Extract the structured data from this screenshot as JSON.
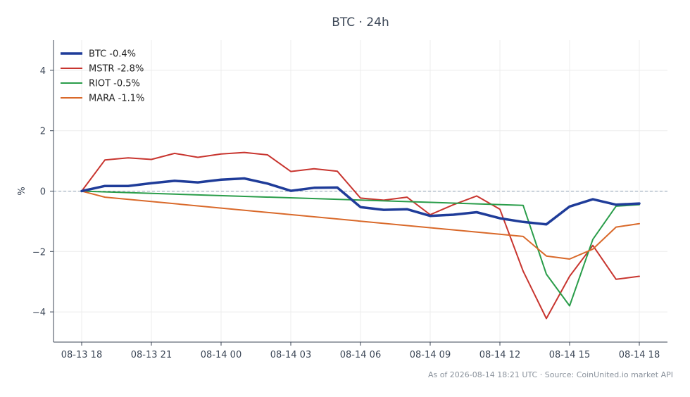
{
  "footer": {
    "text": "As of 2026-08-14 18:21 UTC · Source: CoinUnited.io market API"
  },
  "chart_data": {
    "type": "line",
    "title": "BTC · 24h",
    "xlabel": "",
    "ylabel": "%",
    "ylim": [
      -5,
      5
    ],
    "yticks": [
      -4,
      -2,
      0,
      2,
      4
    ],
    "ytick_labels": [
      "−4",
      "−2",
      "0",
      "2",
      "4"
    ],
    "xlim": [
      0,
      24
    ],
    "xticks": [
      0,
      3,
      6,
      9,
      12,
      15,
      18,
      21,
      24
    ],
    "xtick_labels": [
      "08-13 18",
      "08-13 21",
      "08-14 00",
      "08-14 03",
      "08-14 06",
      "08-14 09",
      "08-14 12",
      "08-14 15",
      "08-14 18"
    ],
    "grid": true,
    "zero_line": true,
    "legend_position": "top-left",
    "series": [
      {
        "name": "BTC -0.4%",
        "color": "#1f3c99",
        "width": 3.5,
        "points": [
          [
            0,
            0
          ],
          [
            1,
            0.17
          ],
          [
            2,
            0.17
          ],
          [
            3,
            0.26
          ],
          [
            4,
            0.34
          ],
          [
            5,
            0.29
          ],
          [
            6,
            0.38
          ],
          [
            7,
            0.42
          ],
          [
            8,
            0.25
          ],
          [
            9,
            0.01
          ],
          [
            10,
            0.11
          ],
          [
            11,
            0.12
          ],
          [
            12,
            -0.53
          ],
          [
            13,
            -0.62
          ],
          [
            14,
            -0.6
          ],
          [
            15,
            -0.82
          ],
          [
            16,
            -0.78
          ],
          [
            17,
            -0.7
          ],
          [
            18,
            -0.9
          ],
          [
            19,
            -1.02
          ],
          [
            20,
            -1.1
          ],
          [
            21,
            -0.51
          ],
          [
            22,
            -0.27
          ],
          [
            23,
            -0.45
          ],
          [
            24,
            -0.41
          ]
        ]
      },
      {
        "name": "MSTR -2.8%",
        "color": "#c8352f",
        "width": 2,
        "points": [
          [
            0,
            0
          ],
          [
            1,
            1.03
          ],
          [
            2,
            1.1
          ],
          [
            3,
            1.05
          ],
          [
            4,
            1.25
          ],
          [
            5,
            1.12
          ],
          [
            6,
            1.23
          ],
          [
            7,
            1.28
          ],
          [
            8,
            1.2
          ],
          [
            9,
            0.65
          ],
          [
            10,
            0.74
          ],
          [
            11,
            0.66
          ],
          [
            12,
            -0.23
          ],
          [
            13,
            -0.3
          ],
          [
            14,
            -0.2
          ],
          [
            15,
            -0.78
          ],
          [
            16,
            -0.45
          ],
          [
            17,
            -0.16
          ],
          [
            18,
            -0.6
          ],
          [
            19,
            -2.65
          ],
          [
            20,
            -4.22
          ],
          [
            21,
            -2.82
          ],
          [
            22,
            -1.8
          ],
          [
            23,
            -2.92
          ],
          [
            24,
            -2.82
          ]
        ]
      },
      {
        "name": "RIOT -0.5%",
        "color": "#2a9d4a",
        "width": 2,
        "points": [
          [
            0,
            0
          ],
          [
            19,
            -0.47
          ],
          [
            20,
            -2.75
          ],
          [
            21,
            -3.8
          ],
          [
            22,
            -1.6
          ],
          [
            23,
            -0.5
          ],
          [
            24,
            -0.45
          ]
        ]
      },
      {
        "name": "MARA -1.1%",
        "color": "#d9692a",
        "width": 2,
        "points": [
          [
            0,
            0
          ],
          [
            1,
            -0.2
          ],
          [
            19,
            -1.5
          ],
          [
            20,
            -2.15
          ],
          [
            21,
            -2.25
          ],
          [
            22,
            -1.92
          ],
          [
            23,
            -1.19
          ],
          [
            24,
            -1.08
          ]
        ]
      }
    ]
  }
}
